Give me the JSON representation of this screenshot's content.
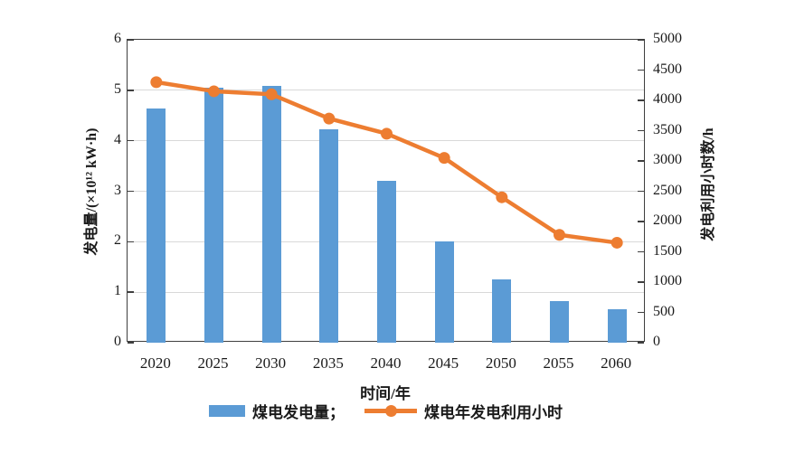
{
  "chart_data": {
    "type": "combo",
    "title": "",
    "categories": [
      "2020",
      "2025",
      "2030",
      "2035",
      "2040",
      "2045",
      "2050",
      "2055",
      "2060"
    ],
    "series": [
      {
        "name": "煤电发电量",
        "type": "bar",
        "axis": "left",
        "color": "#5B9BD5",
        "values": [
          4.63,
          5.05,
          5.08,
          4.22,
          3.2,
          2.0,
          1.25,
          0.83,
          0.67
        ]
      },
      {
        "name": "煤电年发电利用小时",
        "type": "line",
        "axis": "right",
        "color": "#ED7D31",
        "values": [
          4300,
          4150,
          4100,
          3700,
          3450,
          3050,
          2400,
          1780,
          1650
        ]
      }
    ],
    "left_axis": {
      "label": "发电量/(×10¹² kW·h)",
      "min": 0,
      "max": 6,
      "step": 1,
      "ticks": [
        0,
        1,
        2,
        3,
        4,
        5,
        6
      ],
      "gridline_values": [
        1,
        2,
        3,
        4,
        5
      ]
    },
    "right_axis": {
      "label": "发电利用小时数/h",
      "min": 0,
      "max": 5000,
      "step": 500,
      "ticks": [
        0,
        500,
        1000,
        1500,
        2000,
        2500,
        3000,
        3500,
        4000,
        4500,
        5000
      ]
    },
    "x_axis": {
      "label": "时间/年"
    },
    "legend": [
      {
        "label": "煤电发电量；",
        "swatch": "bar"
      },
      {
        "label": "煤电年发电利用小时",
        "swatch": "line"
      }
    ],
    "grid": "horizontal",
    "legend_position": "bottom-center"
  }
}
